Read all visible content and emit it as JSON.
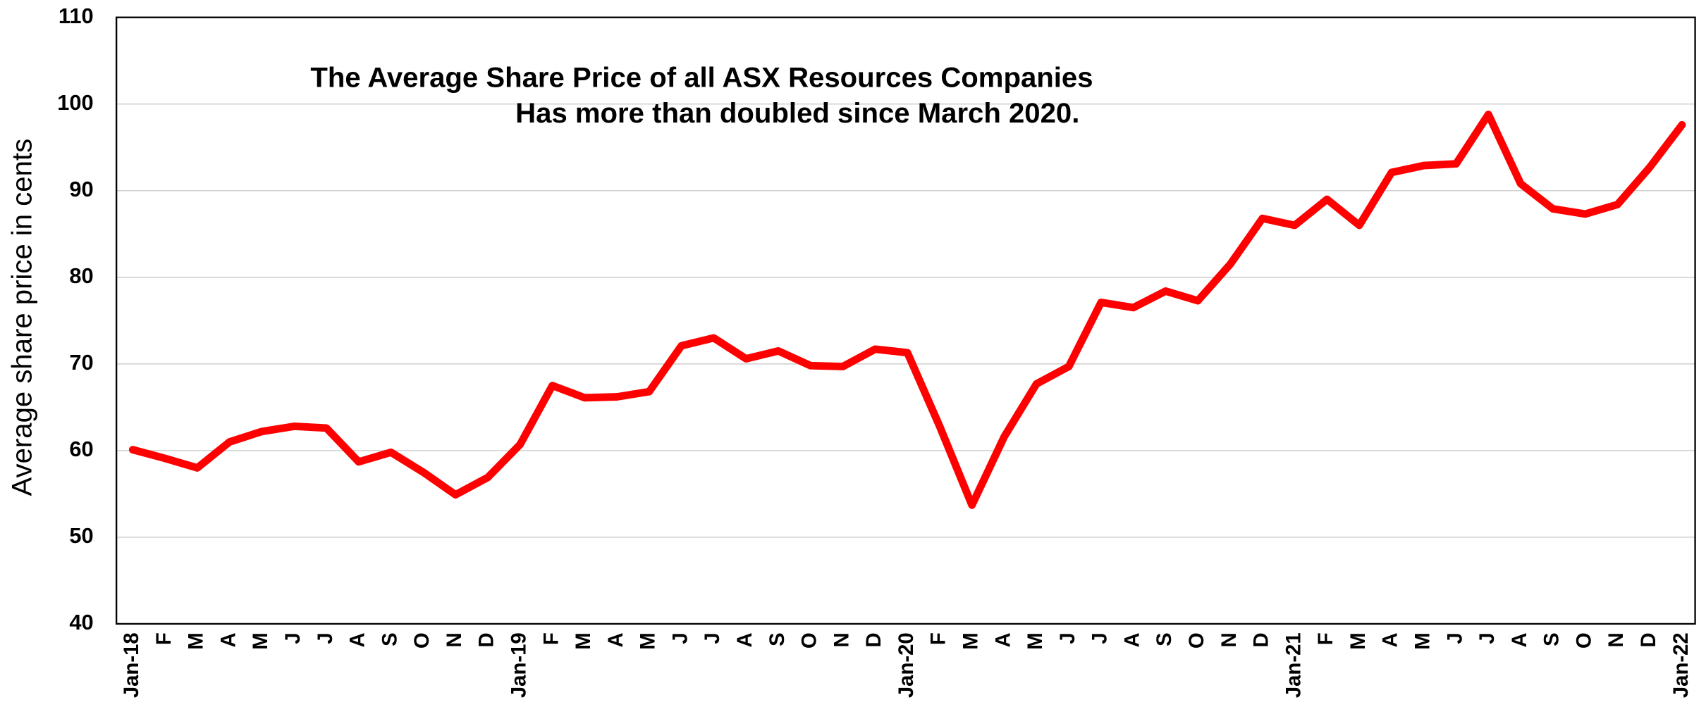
{
  "chart_data": {
    "type": "line",
    "title": "The Average Share Price of all ASX Resources Companies",
    "subtitle": "Has more than doubled since March 2020.",
    "ylabel": "Average share price in cents",
    "categories": [
      "Jan-18",
      "F",
      "M",
      "A",
      "M",
      "J",
      "J",
      "A",
      "S",
      "O",
      "N",
      "D",
      "Jan-19",
      "F",
      "M",
      "A",
      "M",
      "J",
      "J",
      "A",
      "S",
      "O",
      "N",
      "D",
      "Jan-20",
      "F",
      "M",
      "A",
      "M",
      "J",
      "J",
      "A",
      "S",
      "O",
      "N",
      "D",
      "Jan-21",
      "F",
      "M",
      "A",
      "M",
      "J",
      "J",
      "A",
      "S",
      "O",
      "N",
      "D",
      "Jan-22"
    ],
    "series": [
      {
        "name": "Average share price",
        "color": "#ff0000",
        "values": [
          60.1,
          59.1,
          58.0,
          61.0,
          62.2,
          62.8,
          62.6,
          58.7,
          59.8,
          57.5,
          54.9,
          56.9,
          60.7,
          67.5,
          66.1,
          66.2,
          66.8,
          72.1,
          73.0,
          70.6,
          71.5,
          69.8,
          69.7,
          71.7,
          71.3,
          62.8,
          53.7,
          61.6,
          67.7,
          69.7,
          77.1,
          76.5,
          78.4,
          77.3,
          81.5,
          86.8,
          86.0,
          89.0,
          86.0,
          92.1,
          92.9,
          93.1,
          98.8,
          90.8,
          87.9,
          87.3,
          88.4,
          92.7,
          97.6
        ]
      }
    ],
    "ylim": [
      40,
      110
    ],
    "yticks": [
      40,
      50,
      60,
      70,
      80,
      90,
      100,
      110
    ],
    "grid": true
  }
}
